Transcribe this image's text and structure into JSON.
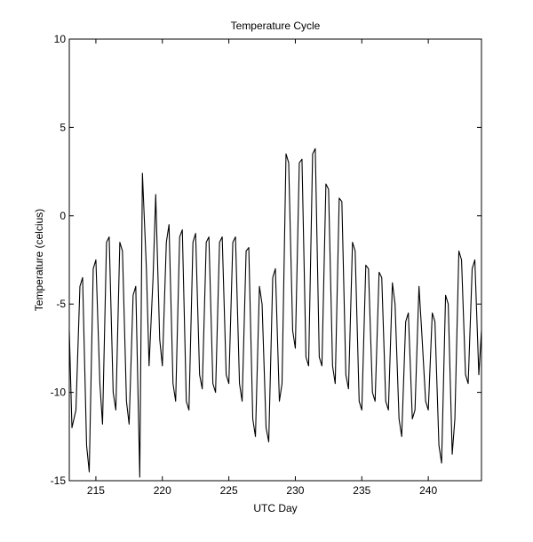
{
  "chart_data": {
    "type": "line",
    "title": "Temperature Cycle",
    "xlabel": "UTC Day",
    "ylabel": "Temperature (celcius)",
    "xlim": [
      213,
      244
    ],
    "ylim": [
      -15,
      10
    ],
    "xticks": [
      215,
      220,
      225,
      230,
      235,
      240
    ],
    "yticks": [
      10,
      5,
      0,
      -5,
      -10,
      -15
    ],
    "grid": false,
    "legend": "none",
    "series": [
      {
        "color": "#000000",
        "x": [
          213.0,
          213.2,
          213.5,
          213.8,
          214.0,
          214.3,
          214.5,
          214.8,
          215.0,
          215.3,
          215.5,
          215.8,
          216.0,
          216.3,
          216.5,
          216.8,
          217.0,
          217.3,
          217.5,
          217.8,
          218.0,
          218.3,
          218.5,
          218.8,
          219.0,
          219.3,
          219.5,
          219.8,
          220.0,
          220.3,
          220.5,
          220.8,
          221.0,
          221.3,
          221.5,
          221.8,
          222.0,
          222.3,
          222.5,
          222.8,
          223.0,
          223.3,
          223.5,
          223.8,
          224.0,
          224.3,
          224.5,
          224.8,
          225.0,
          225.3,
          225.5,
          225.8,
          226.0,
          226.3,
          226.5,
          226.8,
          227.0,
          227.3,
          227.5,
          227.8,
          228.0,
          228.3,
          228.5,
          228.8,
          229.0,
          229.3,
          229.5,
          229.8,
          230.0,
          230.3,
          230.5,
          230.8,
          231.0,
          231.3,
          231.5,
          231.8,
          232.0,
          232.3,
          232.5,
          232.8,
          233.0,
          233.3,
          233.5,
          233.8,
          234.0,
          234.3,
          234.5,
          234.8,
          235.0,
          235.3,
          235.5,
          235.8,
          236.0,
          236.3,
          236.5,
          236.8,
          237.0,
          237.3,
          237.5,
          237.8,
          238.0,
          238.3,
          238.5,
          238.8,
          239.0,
          239.3,
          239.5,
          239.8,
          240.0,
          240.3,
          240.5,
          240.8,
          241.0,
          241.3,
          241.5,
          241.8,
          242.0,
          242.3,
          242.5,
          242.8,
          243.0,
          243.3,
          243.5,
          243.8,
          244.0
        ],
        "y": [
          -6.5,
          -12.0,
          -11.0,
          -4.0,
          -3.5,
          -13.0,
          -14.5,
          -3.0,
          -2.5,
          -9.5,
          -11.8,
          -1.5,
          -1.2,
          -10.0,
          -11.0,
          -1.5,
          -2.0,
          -10.5,
          -11.8,
          -4.5,
          -4.0,
          -14.8,
          2.4,
          -3.0,
          -8.5,
          -3.5,
          1.2,
          -7.0,
          -8.5,
          -1.5,
          -0.5,
          -9.5,
          -10.5,
          -1.2,
          -0.8,
          -10.5,
          -11.0,
          -1.5,
          -1.0,
          -9.0,
          -9.8,
          -1.5,
          -1.2,
          -9.5,
          -10.0,
          -1.5,
          -1.2,
          -9.0,
          -9.5,
          -1.5,
          -1.2,
          -9.5,
          -10.5,
          -2.0,
          -1.8,
          -11.5,
          -12.5,
          -4.0,
          -5.0,
          -12.0,
          -12.8,
          -3.5,
          -3.0,
          -10.5,
          -9.5,
          3.5,
          3.0,
          -6.5,
          -7.5,
          3.0,
          3.2,
          -8.0,
          -8.5,
          3.5,
          3.8,
          -8.0,
          -8.5,
          1.8,
          1.5,
          -8.5,
          -9.5,
          1.0,
          0.8,
          -9.0,
          -9.8,
          -1.5,
          -2.0,
          -10.5,
          -11.0,
          -2.8,
          -3.0,
          -10.0,
          -10.5,
          -3.2,
          -3.5,
          -10.5,
          -11.0,
          -3.8,
          -5.0,
          -11.5,
          -12.5,
          -6.0,
          -5.5,
          -11.5,
          -11.0,
          -4.0,
          -6.5,
          -10.5,
          -11.0,
          -5.5,
          -6.0,
          -13.0,
          -14.0,
          -4.5,
          -5.0,
          -13.5,
          -11.5,
          -2.0,
          -2.5,
          -9.0,
          -9.5,
          -3.0,
          -2.5,
          -9.0,
          -6.5
        ]
      }
    ]
  }
}
